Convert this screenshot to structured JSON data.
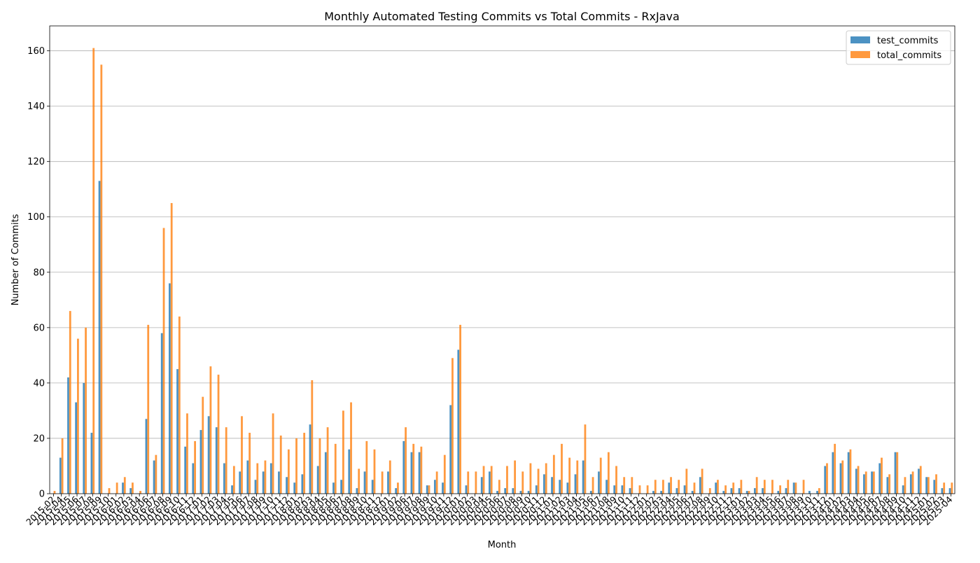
{
  "chart_data": {
    "type": "bar",
    "title": "Monthly Automated Testing Commits vs Total Commits - RxJava",
    "xlabel": "Month",
    "ylabel": "Number of Commits",
    "ylim": [
      0,
      169
    ],
    "yticks": [
      0,
      20,
      40,
      60,
      80,
      100,
      120,
      140,
      160
    ],
    "grid": "y",
    "legend_position": "top-right",
    "categories": [
      "2015-02",
      "2015-04",
      "2015-05",
      "2015-06",
      "2015-07",
      "2015-08",
      "2015-09",
      "2015-10",
      "2016-01",
      "2016-02",
      "2016-03",
      "2016-04",
      "2016-06",
      "2016-07",
      "2016-08",
      "2016-09",
      "2016-10",
      "2016-11",
      "2016-12",
      "2017-01",
      "2017-02",
      "2017-03",
      "2017-04",
      "2017-05",
      "2017-06",
      "2017-07",
      "2017-08",
      "2017-09",
      "2017-10",
      "2017-11",
      "2017-12",
      "2018-01",
      "2018-02",
      "2018-03",
      "2018-04",
      "2018-05",
      "2018-06",
      "2018-07",
      "2018-08",
      "2018-09",
      "2018-10",
      "2018-11",
      "2018-12",
      "2019-01",
      "2019-02",
      "2019-06",
      "2019-07",
      "2019-08",
      "2019-09",
      "2019-10",
      "2019-11",
      "2019-12",
      "2020-01",
      "2020-02",
      "2020-03",
      "2020-04",
      "2020-05",
      "2020-06",
      "2020-07",
      "2020-08",
      "2020-09",
      "2020-10",
      "2020-11",
      "2020-12",
      "2021-01",
      "2021-02",
      "2021-03",
      "2021-04",
      "2021-05",
      "2021-06",
      "2021-07",
      "2021-08",
      "2021-09",
      "2021-10",
      "2021-11",
      "2021-12",
      "2022-01",
      "2022-02",
      "2022-03",
      "2022-04",
      "2022-05",
      "2022-06",
      "2022-07",
      "2022-08",
      "2022-09",
      "2022-10",
      "2022-11",
      "2022-12",
      "2023-01",
      "2023-02",
      "2023-03",
      "2023-04",
      "2023-05",
      "2023-06",
      "2023-07",
      "2023-08",
      "2023-09",
      "2023-10",
      "2023-11",
      "2023-12",
      "2024-01",
      "2024-02",
      "2024-03",
      "2024-04",
      "2024-05",
      "2024-06",
      "2024-07",
      "2024-08",
      "2024-09",
      "2024-10",
      "2024-11",
      "2024-12",
      "2025-01",
      "2025-02",
      "2025-03",
      "2025-04"
    ],
    "series": [
      {
        "name": "test_commits",
        "color": "#1f77b4",
        "values": [
          0,
          13,
          42,
          33,
          40,
          22,
          113,
          0,
          0,
          4,
          2,
          0,
          27,
          12,
          58,
          76,
          45,
          17,
          11,
          23,
          28,
          24,
          11,
          3,
          8,
          12,
          5,
          8,
          11,
          8,
          6,
          4,
          7,
          25,
          10,
          15,
          4,
          5,
          16,
          2,
          8,
          5,
          0,
          8,
          2,
          19,
          15,
          15,
          3,
          5,
          4,
          32,
          52,
          3,
          0,
          6,
          8,
          1,
          2,
          2,
          1,
          1,
          3,
          7,
          6,
          5,
          4,
          7,
          12,
          1,
          8,
          5,
          3,
          3,
          2,
          0,
          0,
          1,
          1,
          4,
          2,
          3,
          1,
          6,
          0,
          4,
          1,
          2,
          2,
          1,
          2,
          2,
          0,
          1,
          2,
          4,
          0,
          1,
          1,
          10,
          15,
          11,
          15,
          9,
          7,
          8,
          11,
          6,
          15,
          3,
          7,
          9,
          6,
          5,
          2,
          2
        ]
      },
      {
        "name": "total_commits",
        "color": "#ff7f0e",
        "values": [
          1,
          20,
          66,
          56,
          60,
          161,
          155,
          2,
          4,
          6,
          4,
          1,
          61,
          14,
          96,
          105,
          64,
          29,
          19,
          35,
          46,
          43,
          24,
          10,
          28,
          22,
          11,
          12,
          29,
          21,
          16,
          20,
          22,
          41,
          20,
          24,
          18,
          30,
          33,
          9,
          19,
          16,
          8,
          12,
          4,
          24,
          18,
          17,
          3,
          8,
          14,
          49,
          61,
          8,
          8,
          10,
          10,
          5,
          10,
          12,
          8,
          11,
          9,
          11,
          14,
          18,
          13,
          12,
          25,
          6,
          13,
          15,
          10,
          6,
          6,
          3,
          3,
          5,
          5,
          6,
          5,
          9,
          4,
          9,
          2,
          5,
          3,
          4,
          5,
          1,
          6,
          5,
          5,
          3,
          5,
          4,
          5,
          0,
          2,
          11,
          18,
          12,
          16,
          10,
          8,
          8,
          13,
          7,
          15,
          6,
          8,
          10,
          6,
          7,
          4,
          4
        ]
      }
    ]
  }
}
